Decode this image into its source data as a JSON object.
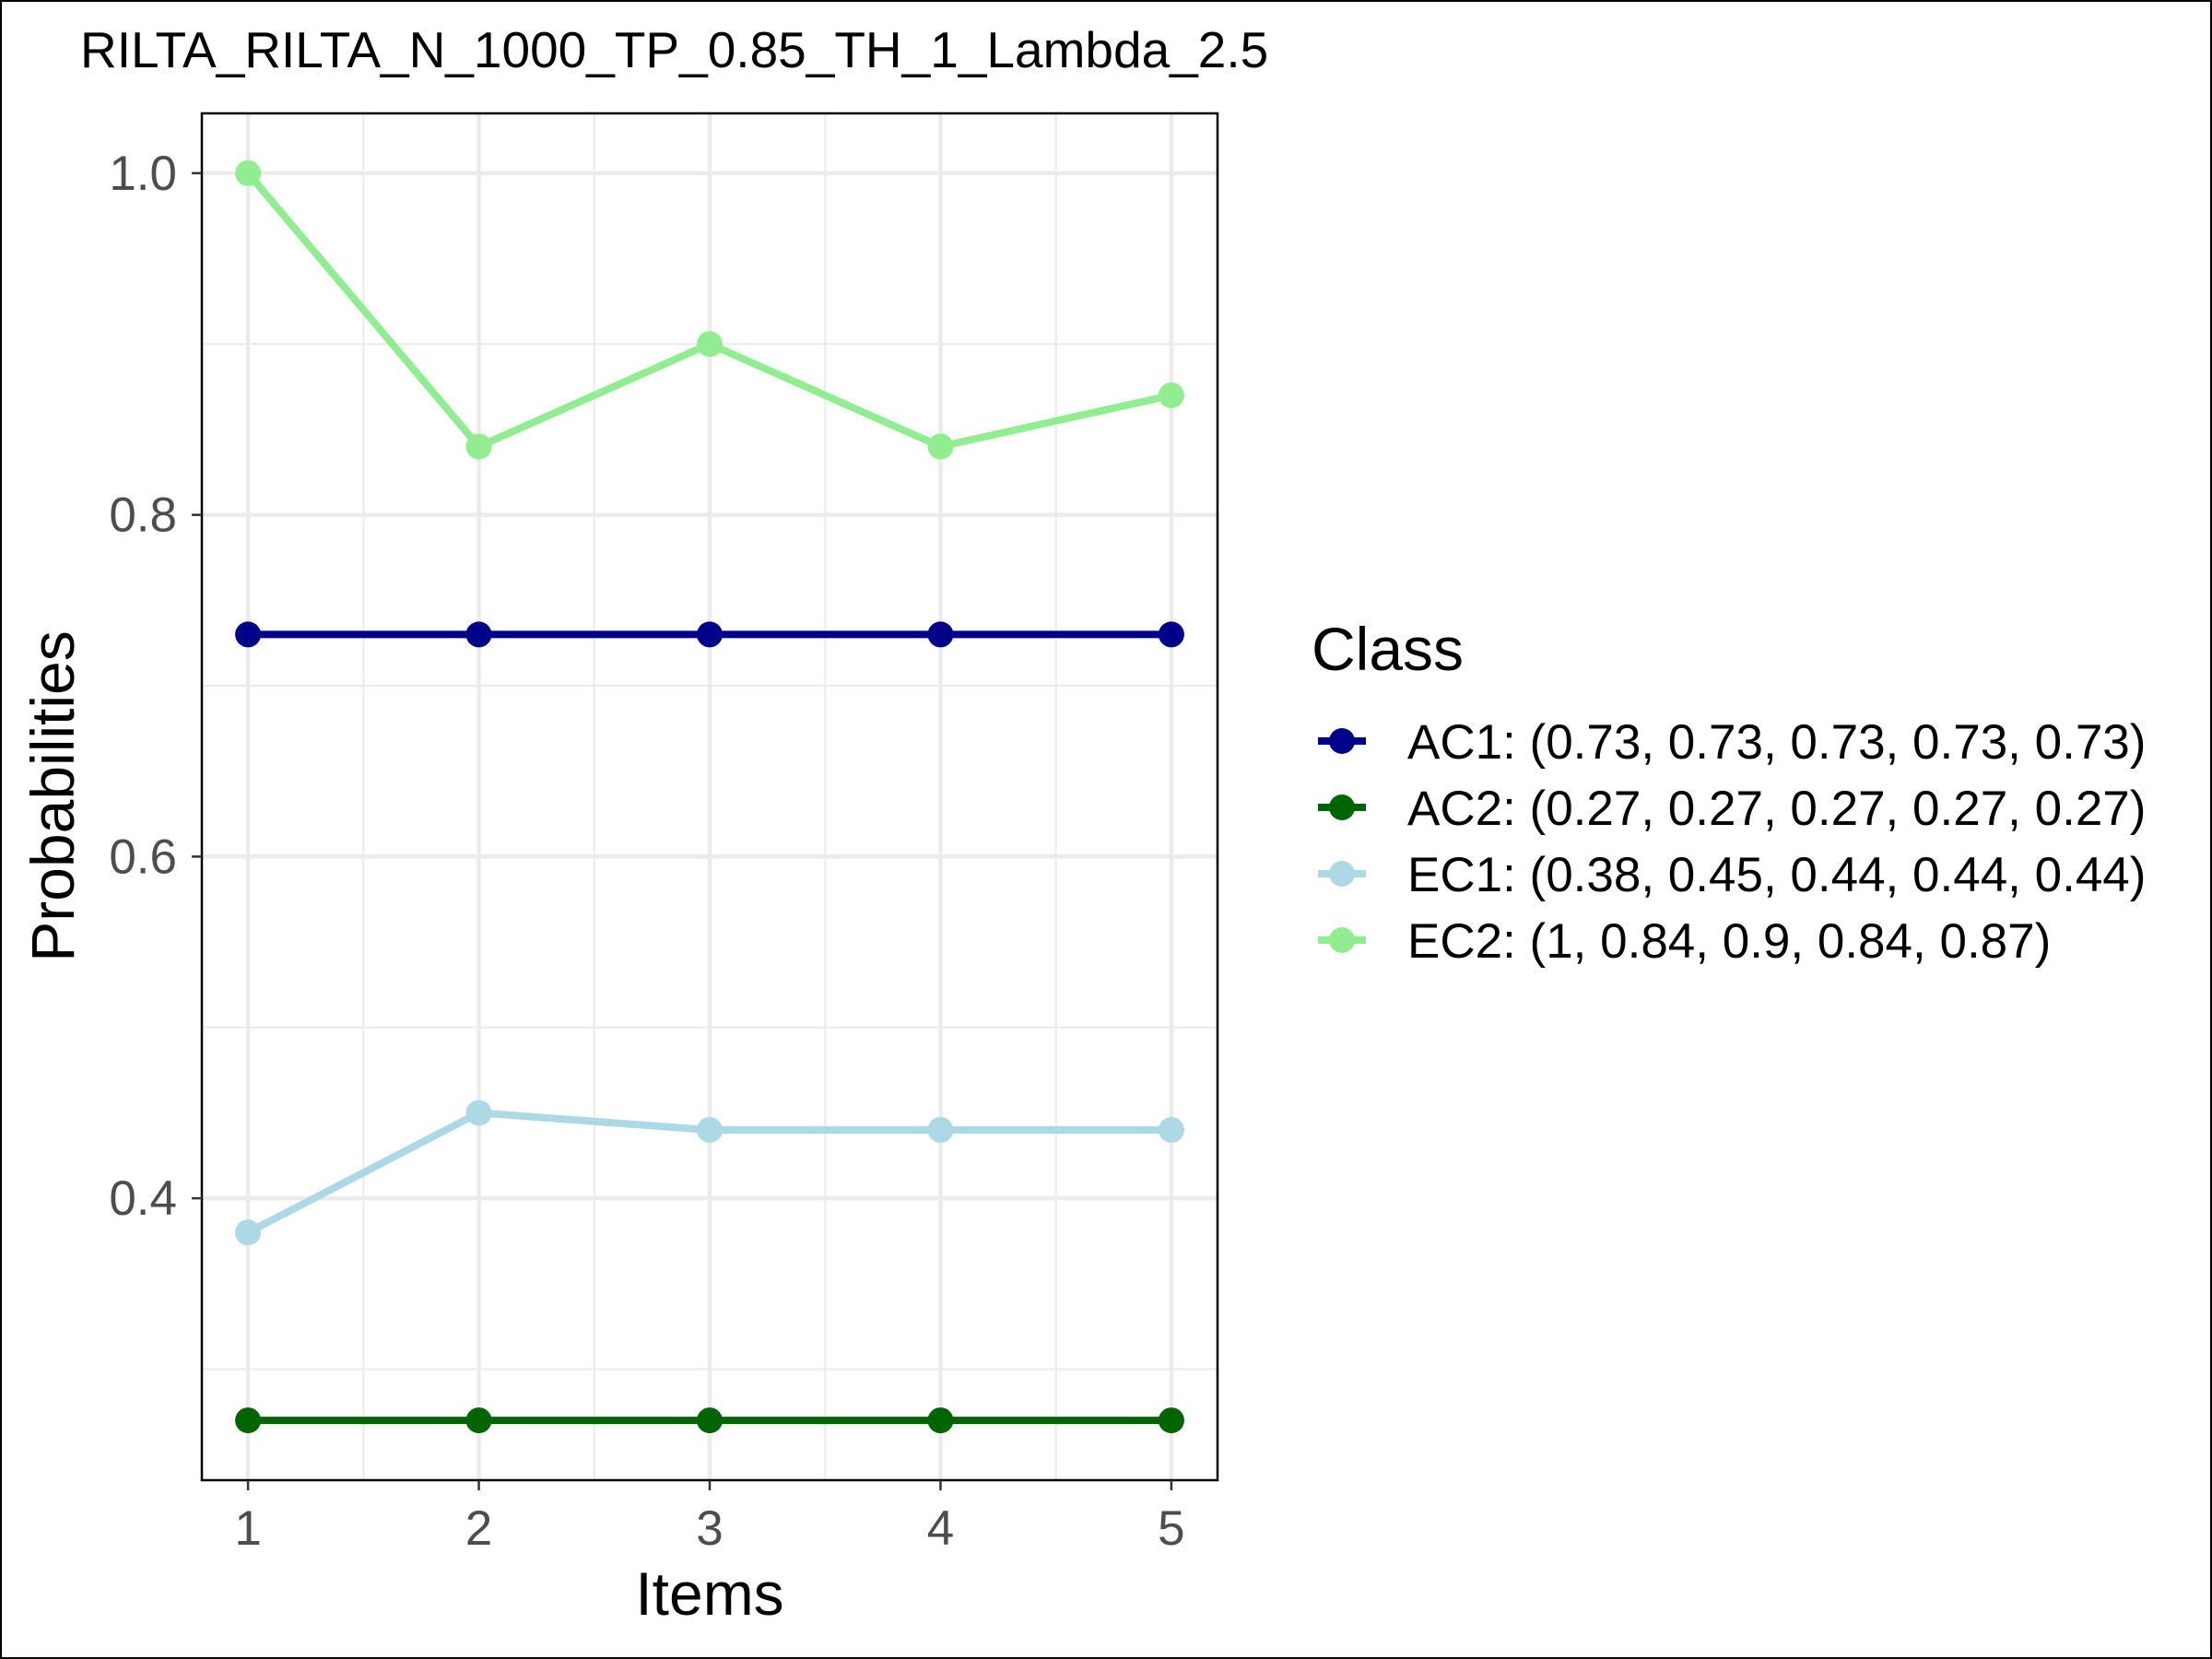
{
  "chart_data": {
    "type": "line",
    "title": "RILTA_RILTA_N_1000_TP_0.85_TH_1_Lambda_2.5",
    "xlabel": "Items",
    "ylabel": "Probabilities",
    "x": [
      1,
      2,
      3,
      4,
      5
    ],
    "x_tick_labels": [
      "1",
      "2",
      "3",
      "4",
      "5"
    ],
    "y_ticks": [
      0.4,
      0.6,
      0.8,
      1.0
    ],
    "y_tick_labels": [
      "0.4",
      "0.6",
      "0.8",
      "1.0"
    ],
    "xlim": [
      0.8,
      5.2
    ],
    "ylim": [
      0.235,
      1.035
    ],
    "grid": true,
    "legend": {
      "title": "Class",
      "position": "right"
    },
    "series": [
      {
        "name": "AC1",
        "label": "AC1: (0.73, 0.73, 0.73, 0.73, 0.73)",
        "color": "#00008b",
        "values": [
          0.73,
          0.73,
          0.73,
          0.73,
          0.73
        ]
      },
      {
        "name": "AC2",
        "label": "AC2: (0.27, 0.27, 0.27, 0.27, 0.27)",
        "color": "#006400",
        "values": [
          0.27,
          0.27,
          0.27,
          0.27,
          0.27
        ]
      },
      {
        "name": "EC1",
        "label": "EC1: (0.38, 0.45, 0.44, 0.44, 0.44)",
        "color": "#add8e6",
        "values": [
          0.38,
          0.45,
          0.44,
          0.44,
          0.44
        ]
      },
      {
        "name": "EC2",
        "label": "EC2: (1, 0.84, 0.9, 0.84, 0.87)",
        "color": "#90ee90",
        "values": [
          1,
          0.84,
          0.9,
          0.84,
          0.87
        ]
      }
    ]
  }
}
